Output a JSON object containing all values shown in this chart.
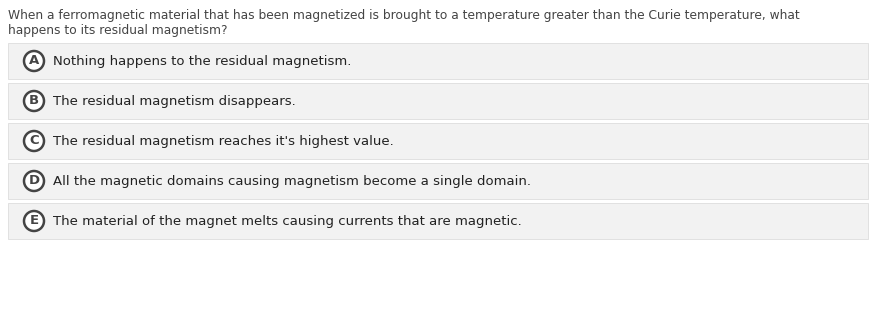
{
  "question_line1": "When a ferromagnetic material that has been magnetized is brought to a temperature greater than the Curie temperature, what",
  "question_line2": "happens to its residual magnetism?",
  "options": [
    {
      "label": "A",
      "text": "Nothing happens to the residual magnetism."
    },
    {
      "label": "B",
      "text": "The residual magnetism disappears."
    },
    {
      "label": "C",
      "text": "The residual magnetism reaches it's highest value."
    },
    {
      "label": "D",
      "text": "All the magnetic domains causing magnetism become a single domain."
    },
    {
      "label": "E",
      "text": "The material of the magnet melts causing currents that are magnetic."
    }
  ],
  "bg_color": "#ffffff",
  "option_bg_color": "#f2f2f2",
  "option_border_color": "#dddddd",
  "text_color": "#222222",
  "question_color": "#444444",
  "circle_edge_color": "#444444",
  "circle_face_color": "#ffffff",
  "font_size_question": 8.8,
  "font_size_option": 9.5,
  "font_size_label": 9.5
}
